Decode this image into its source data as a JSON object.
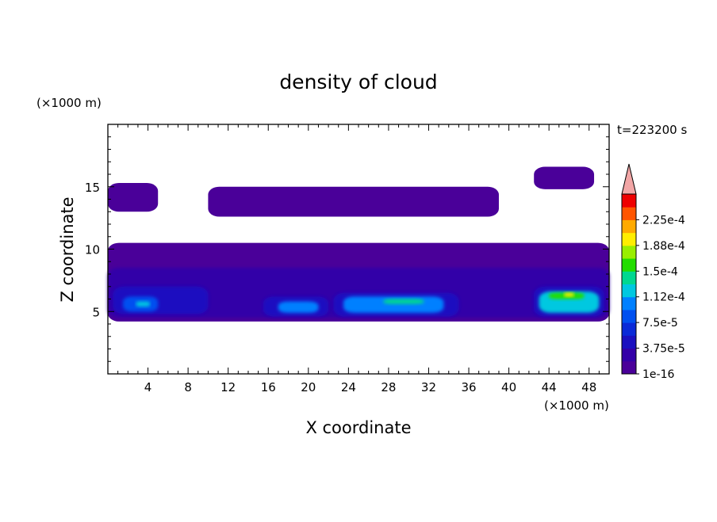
{
  "chart_data": {
    "type": "heatmap",
    "title": "density of cloud",
    "xlabel": "X coordinate",
    "ylabel": "Z coordinate",
    "x_unit": "(×1000 m)",
    "y_unit": "(×1000 m)",
    "time_label": "t=223200 s",
    "xlim": [
      0,
      50
    ],
    "ylim": [
      0,
      20
    ],
    "x_ticks": [
      4,
      8,
      12,
      16,
      20,
      24,
      28,
      32,
      36,
      40,
      44,
      48
    ],
    "y_ticks": [
      5,
      10,
      15
    ],
    "x_tick_labels": [
      "4",
      "8",
      "12",
      "16",
      "20",
      "24",
      "28",
      "32",
      "36",
      "40",
      "44",
      "48"
    ],
    "y_tick_labels": [
      "5",
      "10",
      "15"
    ],
    "colorbar": {
      "levels": [
        1e-16,
        1.875e-05,
        3.75e-05,
        5.625e-05,
        7.5e-05,
        9.375e-05,
        0.0001125,
        0.00013125,
        0.00015,
        0.00016875,
        0.0001875,
        0.00020625,
        0.000225,
        0.00024375
      ],
      "labels": [
        "1e-16",
        "3.75e-5",
        "7.5e-5",
        "1.12e-4",
        "1.5e-4",
        "1.88e-4",
        "2.25e-4"
      ],
      "colors": [
        "#4a0099",
        "#3300a8",
        "#1a10c0",
        "#0a2ad8",
        "#0050f0",
        "#0080ff",
        "#00c8e0",
        "#00d890",
        "#22dd00",
        "#99ee00",
        "#ffee00",
        "#ffaa00",
        "#ff5500",
        "#ee0000"
      ],
      "extend_color": "#f2a6a6"
    },
    "cloud_regions": [
      {
        "level": 0,
        "x": [
          0.0,
          50.0
        ],
        "z": [
          4.2,
          10.5
        ]
      },
      {
        "level": 0,
        "x": [
          0.0,
          5.0
        ],
        "z": [
          13.0,
          15.3
        ]
      },
      {
        "level": 0,
        "x": [
          10.0,
          39.0
        ],
        "z": [
          12.6,
          15.0
        ]
      },
      {
        "level": 0,
        "x": [
          42.5,
          48.5
        ],
        "z": [
          14.8,
          16.6
        ]
      },
      {
        "level": 1,
        "x": [
          0.0,
          50.0
        ],
        "z": [
          4.5,
          8.5
        ]
      },
      {
        "level": 2,
        "x": [
          0.5,
          10.0
        ],
        "z": [
          4.8,
          7.0
        ]
      },
      {
        "level": 4,
        "x": [
          1.5,
          5.0
        ],
        "z": [
          5.0,
          6.2
        ]
      },
      {
        "level": 6,
        "x": [
          2.8,
          4.2
        ],
        "z": [
          5.4,
          5.8
        ]
      },
      {
        "level": 2,
        "x": [
          15.5,
          22.0
        ],
        "z": [
          4.6,
          6.2
        ]
      },
      {
        "level": 5,
        "x": [
          17.0,
          21.0
        ],
        "z": [
          4.9,
          5.8
        ]
      },
      {
        "level": 2,
        "x": [
          22.5,
          35.0
        ],
        "z": [
          4.6,
          6.5
        ]
      },
      {
        "level": 5,
        "x": [
          23.5,
          33.5
        ],
        "z": [
          4.9,
          6.2
        ]
      },
      {
        "level": 7,
        "x": [
          27.5,
          31.5
        ],
        "z": [
          5.6,
          6.0
        ]
      },
      {
        "level": 2,
        "x": [
          42.5,
          49.5
        ],
        "z": [
          4.6,
          7.0
        ]
      },
      {
        "level": 6,
        "x": [
          43.0,
          49.0
        ],
        "z": [
          4.9,
          6.6
        ]
      },
      {
        "level": 8,
        "x": [
          44.0,
          47.5
        ],
        "z": [
          6.0,
          6.5
        ]
      },
      {
        "level": 10,
        "x": [
          45.5,
          46.5
        ],
        "z": [
          6.2,
          6.5
        ]
      }
    ],
    "grid": false
  }
}
